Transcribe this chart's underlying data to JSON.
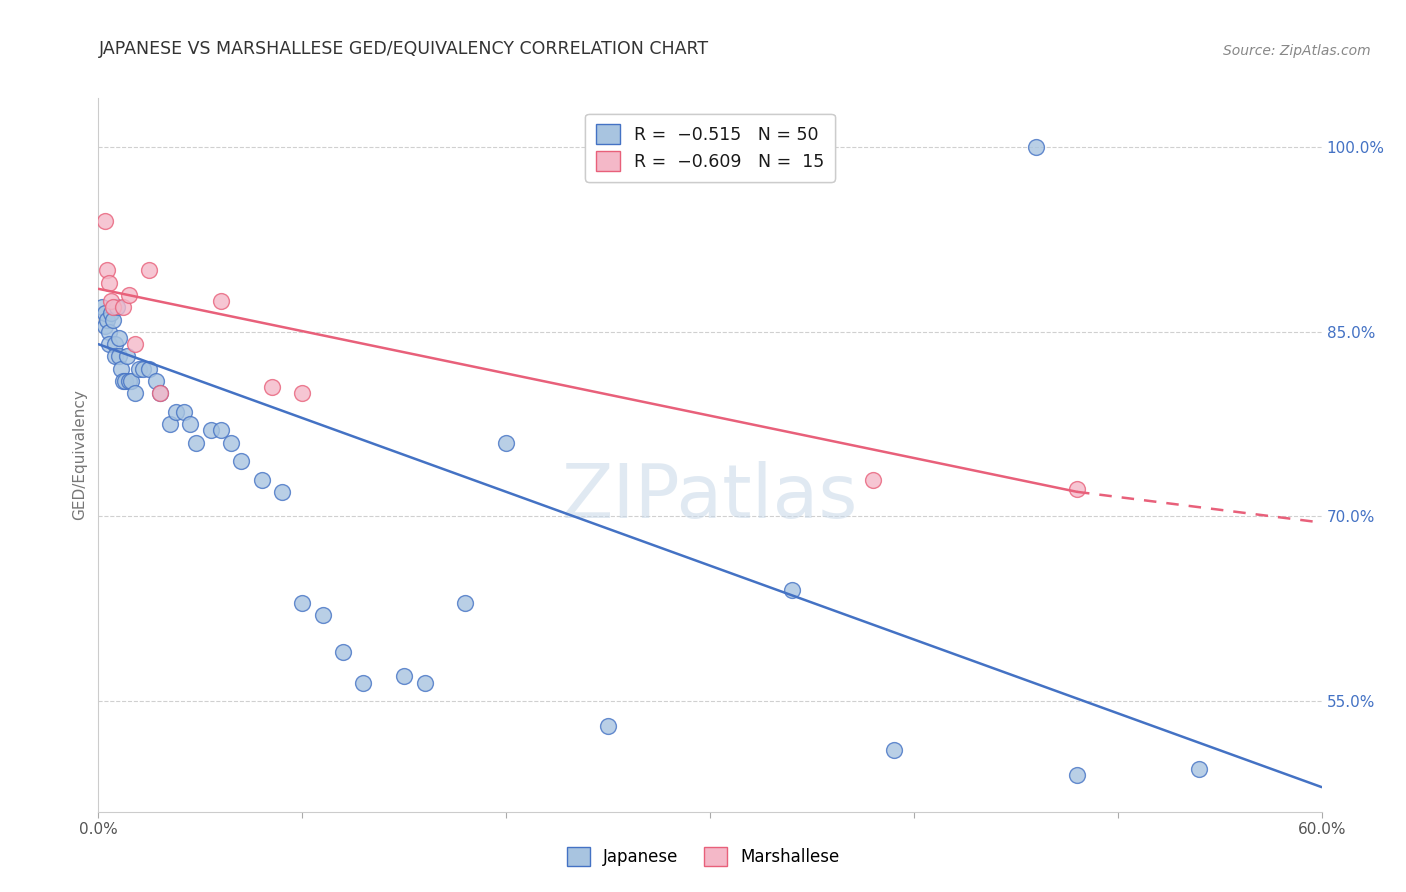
{
  "title": "JAPANESE VS MARSHALLESE GED/EQUIVALENCY CORRELATION CHART",
  "source": "Source: ZipAtlas.com",
  "ylabel": "GED/Equivalency",
  "xlim": [
    0.0,
    0.6
  ],
  "ylim": [
    0.46,
    1.04
  ],
  "yticks_right": [
    1.0,
    0.85,
    0.7,
    0.55
  ],
  "yticklabels_right": [
    "100.0%",
    "85.0%",
    "70.0%",
    "55.0%"
  ],
  "japanese_color": "#a8c4e0",
  "marshallese_color": "#f4b8c8",
  "line_japanese_color": "#4472C4",
  "line_marshallese_color": "#E8607A",
  "background_color": "#ffffff",
  "watermark": "ZIPatlas",
  "japanese_x": [
    0.002,
    0.003,
    0.003,
    0.004,
    0.005,
    0.005,
    0.006,
    0.007,
    0.008,
    0.008,
    0.009,
    0.01,
    0.01,
    0.011,
    0.012,
    0.013,
    0.014,
    0.015,
    0.016,
    0.018,
    0.02,
    0.022,
    0.025,
    0.028,
    0.03,
    0.035,
    0.038,
    0.042,
    0.045,
    0.048,
    0.055,
    0.06,
    0.065,
    0.07,
    0.08,
    0.09,
    0.1,
    0.11,
    0.12,
    0.13,
    0.15,
    0.16,
    0.18,
    0.2,
    0.25,
    0.34,
    0.39,
    0.48,
    0.54,
    0.46
  ],
  "japanese_y": [
    0.87,
    0.855,
    0.865,
    0.86,
    0.85,
    0.84,
    0.865,
    0.86,
    0.84,
    0.83,
    0.87,
    0.845,
    0.83,
    0.82,
    0.81,
    0.81,
    0.83,
    0.81,
    0.81,
    0.8,
    0.82,
    0.82,
    0.82,
    0.81,
    0.8,
    0.775,
    0.785,
    0.785,
    0.775,
    0.76,
    0.77,
    0.77,
    0.76,
    0.745,
    0.73,
    0.72,
    0.63,
    0.62,
    0.59,
    0.565,
    0.57,
    0.565,
    0.63,
    0.76,
    0.53,
    0.64,
    0.51,
    0.49,
    0.495,
    1.0
  ],
  "marshallese_x": [
    0.003,
    0.004,
    0.005,
    0.006,
    0.007,
    0.012,
    0.015,
    0.018,
    0.025,
    0.03,
    0.06,
    0.085,
    0.1,
    0.38,
    0.48
  ],
  "marshallese_y": [
    0.94,
    0.9,
    0.89,
    0.875,
    0.87,
    0.87,
    0.88,
    0.84,
    0.9,
    0.8,
    0.875,
    0.805,
    0.8,
    0.73,
    0.722
  ],
  "line_j_x0": 0.0,
  "line_j_x1": 0.6,
  "line_j_y0": 0.84,
  "line_j_y1": 0.48,
  "line_m_x0": 0.0,
  "line_m_x1": 0.48,
  "line_m_y0": 0.885,
  "line_m_y1": 0.72,
  "line_m_dash_x0": 0.48,
  "line_m_dash_x1": 0.6,
  "line_m_dash_y0": 0.72,
  "line_m_dash_y1": 0.695
}
